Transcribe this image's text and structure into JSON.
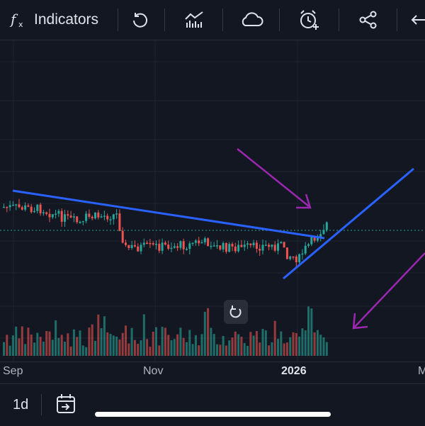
{
  "toolbar": {
    "indicators_label": "Indicators",
    "icons": [
      "function-icon",
      "undo-icon",
      "chart-type-icon",
      "cloud-icon",
      "alert-clock-icon",
      "share-icon",
      "back-arrow-icon"
    ]
  },
  "chart": {
    "x_labels": [
      "Sep",
      "Nov",
      "2026",
      "M"
    ],
    "up_color": "#26a69a",
    "down_color": "#ef5350",
    "trendline_color": "#2962ff",
    "annotation_color": "#9c27b0",
    "price_line_color": "#26a69a"
  },
  "chart_data": {
    "type": "candlestick",
    "xlabel": "",
    "ylabel": "",
    "x_ticks": [
      "Sep",
      "Nov",
      "2026",
      "M"
    ],
    "annotations": [
      {
        "kind": "trendline",
        "description": "descending resistance line"
      },
      {
        "kind": "trendline",
        "description": "ascending support line"
      },
      {
        "kind": "arrow",
        "description": "purple arrow pointing down-right toward breakout"
      },
      {
        "kind": "arrow",
        "description": "purple arrow pointing down-left toward volume"
      }
    ]
  },
  "bottombar": {
    "interval_label": "1d",
    "icons": [
      "date-range-icon"
    ]
  }
}
